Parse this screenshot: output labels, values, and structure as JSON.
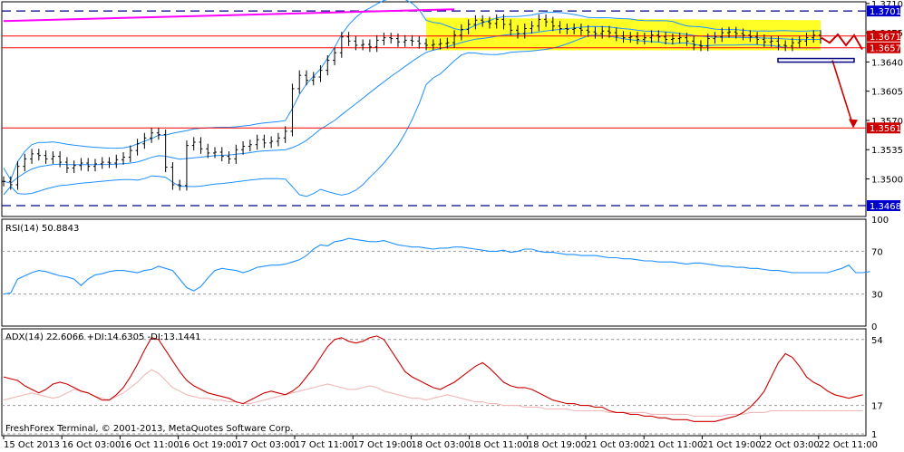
{
  "colors": {
    "background": "#ffffff",
    "panel_border": "#000000",
    "bar": "#000000",
    "bollinger": "#1e90ff",
    "resistance": "#ff0000",
    "channel": "#ffff00",
    "trendline": "#ff00ff",
    "dashed": "#000080",
    "rsi": "#1e90ff",
    "adx": "#cc0000",
    "di": "#f2b8b8",
    "price_box": "#0000cc",
    "arrow": "#cc0000"
  },
  "chart_data": [
    {
      "type": "ohlc",
      "symbol_scale": "price",
      "ylim": [
        1.3455,
        1.3712
      ],
      "yticks": [
        1.35,
        1.3535,
        1.357,
        1.3605,
        1.364,
        1.3675,
        1.371
      ],
      "ytick_labels": [
        "1.3500",
        "1.3535",
        "1.3570",
        "1.3605",
        "1.3640",
        "1.3675",
        "1.3710"
      ],
      "price_boxes": [
        {
          "label": "1.3701",
          "value": 1.3701,
          "color": "#0000cc"
        },
        {
          "label": "1.3671",
          "value": 1.3671,
          "color": "#cc0000"
        },
        {
          "label": "1.3657",
          "value": 1.3657,
          "color": "#cc0000"
        },
        {
          "label": "1.3561",
          "value": 1.3561,
          "color": "#cc0000"
        },
        {
          "label": "1.3468",
          "value": 1.3468,
          "color": "#0000cc"
        }
      ],
      "horizontal_levels": [
        {
          "value": 1.3701,
          "style": "dashed"
        },
        {
          "value": 1.3671,
          "style": "solid"
        },
        {
          "value": 1.3657,
          "style": "solid"
        },
        {
          "value": 1.3561,
          "style": "solid"
        },
        {
          "value": 1.3468,
          "style": "dashed"
        }
      ],
      "closes": [
        1.3497,
        1.3493,
        1.3515,
        1.3524,
        1.353,
        1.3528,
        1.3524,
        1.3527,
        1.352,
        1.3513,
        1.3516,
        1.3519,
        1.3515,
        1.3518,
        1.352,
        1.3519,
        1.3523,
        1.3526,
        1.3534,
        1.3542,
        1.3549,
        1.3555,
        1.3553,
        1.3514,
        1.3493,
        1.3492,
        1.354,
        1.3544,
        1.3536,
        1.3531,
        1.3532,
        1.3527,
        1.3524,
        1.3535,
        1.3539,
        1.3541,
        1.3547,
        1.3543,
        1.3545,
        1.3549,
        1.3557,
        1.3608,
        1.3624,
        1.3618,
        1.3622,
        1.363,
        1.3642,
        1.3651,
        1.367,
        1.3665,
        1.366,
        1.3661,
        1.3658,
        1.3666,
        1.3669,
        1.3668,
        1.3664,
        1.3666,
        1.3665,
        1.3662,
        1.366,
        1.3661,
        1.3662,
        1.3663,
        1.3672,
        1.3679,
        1.3685,
        1.369,
        1.3688,
        1.3686,
        1.3691,
        1.3685,
        1.3678,
        1.3674,
        1.368,
        1.3683,
        1.3691,
        1.3688,
        1.3683,
        1.368,
        1.3679,
        1.368,
        1.3678,
        1.3676,
        1.3674,
        1.3677,
        1.3675,
        1.3671,
        1.3669,
        1.367,
        1.3667,
        1.3669,
        1.3672,
        1.367,
        1.3667,
        1.3668,
        1.3669,
        1.3665,
        1.366,
        1.3659,
        1.3668,
        1.367,
        1.3675,
        1.3676,
        1.3674,
        1.3672,
        1.367,
        1.3667,
        1.3664,
        1.3665,
        1.366,
        1.3659,
        1.3663,
        1.3665,
        1.3669,
        1.3672,
        1.3668
      ],
      "forecast_path": [
        1.3669,
        1.3663,
        1.3673,
        1.366,
        1.3672,
        1.3655
      ],
      "forecast_drop": [
        1.3642,
        1.3563
      ]
    },
    {
      "type": "line",
      "name": "RSI(14) 50.8843",
      "ylim": [
        0,
        100
      ],
      "yticks": [
        0,
        30,
        70,
        100
      ],
      "ytick_labels": [
        "0",
        "30",
        "70",
        "100"
      ],
      "levels": [
        30,
        70
      ],
      "values": [
        30,
        31,
        44,
        47,
        50,
        52,
        51,
        49,
        47,
        46,
        44,
        38,
        44,
        48,
        49,
        51,
        52,
        52,
        51,
        50,
        52,
        53,
        56,
        54,
        52,
        44,
        36,
        33,
        37,
        45,
        52,
        54,
        53,
        52,
        50,
        52,
        55,
        56,
        57,
        57,
        58,
        60,
        62,
        66,
        72,
        76,
        75,
        79,
        80,
        82,
        81,
        80,
        79,
        79,
        80,
        78,
        76,
        75,
        74,
        74,
        73,
        72,
        73,
        73,
        74,
        74,
        73,
        72,
        71,
        70,
        70,
        71,
        69,
        70,
        72,
        72,
        70,
        69,
        69,
        68,
        67,
        67,
        66,
        66,
        66,
        65,
        64,
        64,
        63,
        63,
        62,
        61,
        61,
        60,
        60,
        60,
        59,
        58,
        59,
        59,
        58,
        57,
        56,
        56,
        55,
        55,
        54,
        54,
        53,
        52,
        52,
        51,
        50,
        50,
        50,
        50,
        50,
        50,
        52,
        54,
        57,
        50,
        50,
        51
      ]
    },
    {
      "type": "line",
      "name": "ADX(14) 22.6066 +DI:14.6305 -DI:13.1441",
      "ylim": [
        0,
        60
      ],
      "yticks": [
        1,
        17,
        54
      ],
      "ytick_labels": [
        "1",
        "17",
        "54"
      ],
      "series": [
        {
          "name": "ADX",
          "color": "#cc0000",
          "values": [
            33,
            32,
            31,
            28,
            26,
            24,
            26,
            29,
            30,
            29,
            27,
            25,
            24,
            22,
            20,
            20,
            23,
            27,
            33,
            40,
            48,
            55,
            54,
            48,
            42,
            36,
            31,
            28,
            26,
            24,
            23,
            22,
            21,
            19,
            18,
            20,
            22,
            24,
            25,
            24,
            23,
            25,
            28,
            33,
            38,
            44,
            50,
            54,
            55,
            53,
            52,
            53,
            55,
            56,
            54,
            48,
            42,
            36,
            33,
            31,
            29,
            27,
            26,
            28,
            30,
            33,
            36,
            39,
            41,
            38,
            34,
            30,
            28,
            27,
            27,
            26,
            24,
            22,
            20,
            19,
            18,
            18,
            17,
            17,
            16,
            16,
            14,
            13,
            13,
            12,
            12,
            11,
            11,
            10,
            10,
            9,
            9,
            9,
            8,
            8,
            8,
            8,
            9,
            10,
            11,
            13,
            16,
            20,
            25,
            33,
            41,
            46,
            44,
            39,
            33,
            30,
            28,
            25,
            23,
            22,
            21,
            22,
            23
          ]
        },
        {
          "name": "+DI / -DI",
          "color": "#f2b8b8",
          "values": [
            20,
            21,
            22,
            23,
            24,
            23,
            22,
            21,
            22,
            24,
            26,
            25,
            24,
            22,
            21,
            20,
            22,
            24,
            27,
            30,
            34,
            37,
            35,
            31,
            27,
            25,
            23,
            22,
            21,
            21,
            20,
            20,
            19,
            19,
            18,
            18,
            19,
            20,
            21,
            22,
            23,
            24,
            25,
            26,
            27,
            28,
            29,
            28,
            27,
            26,
            26,
            27,
            28,
            27,
            25,
            24,
            23,
            22,
            21,
            21,
            20,
            21,
            22,
            23,
            22,
            21,
            20,
            19,
            19,
            18,
            18,
            17,
            17,
            17,
            16,
            16,
            16,
            15,
            15,
            15,
            15,
            14,
            14,
            14,
            14,
            14,
            13,
            13,
            13,
            13,
            13,
            13,
            12,
            12,
            12,
            12,
            12,
            12,
            11,
            11,
            11,
            11,
            11,
            12,
            12,
            12,
            13,
            13,
            13,
            14,
            14,
            14,
            14,
            14,
            14,
            14,
            14,
            14,
            14,
            14,
            14,
            14,
            14
          ]
        }
      ]
    }
  ],
  "x_axis": {
    "tick_labels": [
      "15 Oct 2013",
      "16 Oct 03:00",
      "16 Oct 11:00",
      "16 Oct 19:00",
      "17 Oct 03:00",
      "17 Oct 11:00",
      "17 Oct 19:00",
      "18 Oct 03:00",
      "18 Oct 11:00",
      "18 Oct 19:00",
      "21 Oct 03:00",
      "21 Oct 11:00",
      "21 Oct 19:00",
      "22 Oct 03:00",
      "22 Oct 11:00"
    ]
  },
  "copyright": "FreshForex Terminal, © 2001-2013, MetaQuotes Software Corp."
}
